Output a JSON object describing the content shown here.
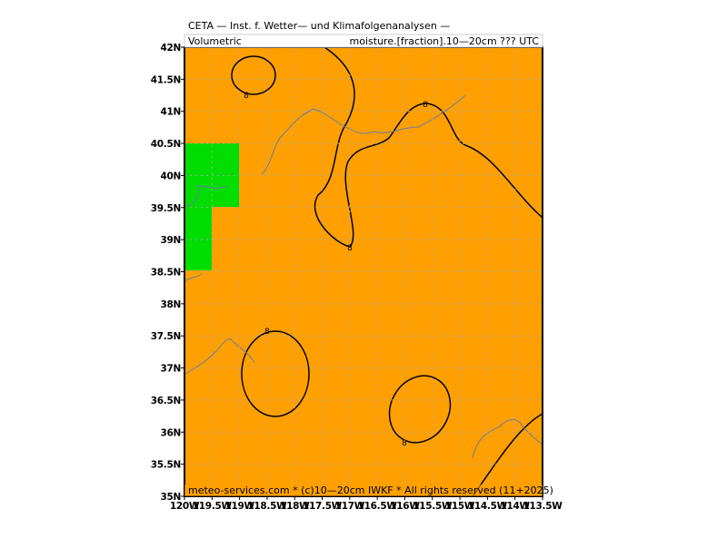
{
  "map": {
    "title": "CETA — Inst. f. Wetter— und Klimafolgenanalysen —",
    "subtitle_left": "Volumetric",
    "subtitle_right": "moisture.[fraction].10—20cm  ???  UTC",
    "footer": "meteo-services.com * (c)10—20cm IWKF * All rights reserved (11+2025)",
    "contour_labels": [
      "8",
      "8",
      "8",
      "8",
      "8"
    ],
    "lonlim": [
      -120,
      -113.5
    ],
    "latlim": [
      35,
      42
    ],
    "lon_ticks": [
      {
        "value": -120,
        "label": "120W"
      },
      {
        "value": -119.5,
        "label": "119.5W"
      },
      {
        "value": -119,
        "label": "119W"
      },
      {
        "value": -118.5,
        "label": "118.5W"
      },
      {
        "value": -118,
        "label": "118W"
      },
      {
        "value": -117.5,
        "label": "117.5W"
      },
      {
        "value": -117,
        "label": "117W"
      },
      {
        "value": -116.5,
        "label": "116.5W"
      },
      {
        "value": -116,
        "label": "116W"
      },
      {
        "value": -115.5,
        "label": "115.5W"
      },
      {
        "value": -115,
        "label": "115W"
      },
      {
        "value": -114.5,
        "label": "114.5W"
      },
      {
        "value": -114,
        "label": "114W"
      },
      {
        "value": -113.5,
        "label": "113.5W"
      }
    ],
    "lat_ticks": [
      {
        "value": 35,
        "label": "35N"
      },
      {
        "value": 35.5,
        "label": "35.5N"
      },
      {
        "value": 36,
        "label": "36N"
      },
      {
        "value": 36.5,
        "label": "36.5N"
      },
      {
        "value": 37,
        "label": "37N"
      },
      {
        "value": 37.5,
        "label": "37.5N"
      },
      {
        "value": 38,
        "label": "38N"
      },
      {
        "value": 38.5,
        "label": "38.5N"
      },
      {
        "value": 39,
        "label": "39N"
      },
      {
        "value": 39.5,
        "label": "39.5N"
      },
      {
        "value": 40,
        "label": "40N"
      },
      {
        "value": 40.5,
        "label": "40.5N"
      },
      {
        "value": 41,
        "label": "41N"
      },
      {
        "value": 41.5,
        "label": "41.5N"
      },
      {
        "value": 42,
        "label": "42N"
      }
    ]
  }
}
